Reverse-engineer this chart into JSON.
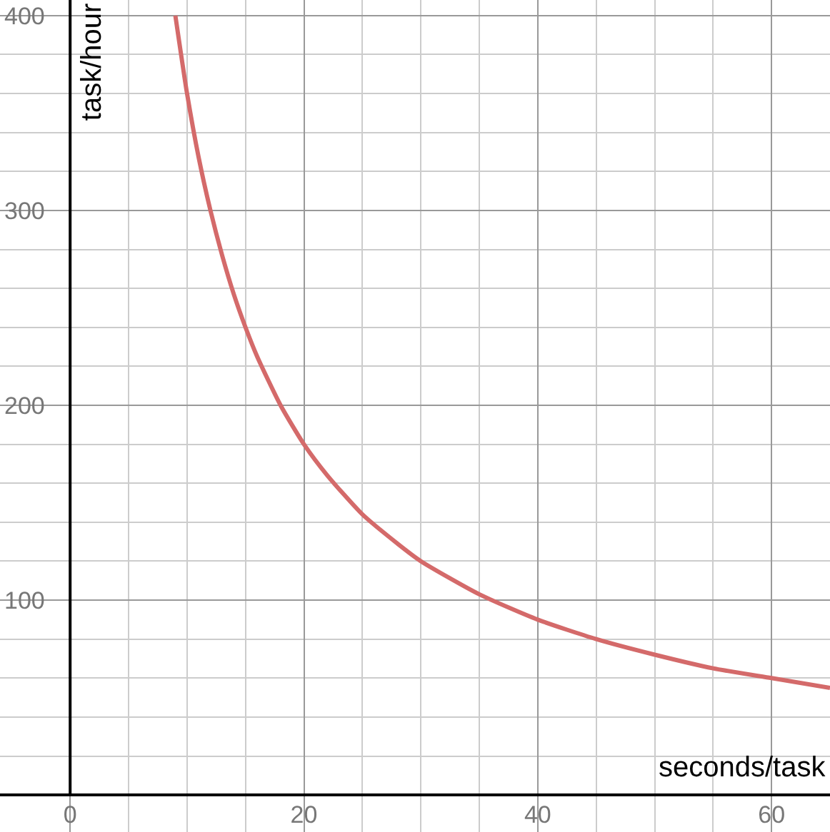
{
  "chart_data": {
    "type": "line",
    "xlabel": "seconds/task",
    "ylabel": "task/hour",
    "x": [
      9,
      10,
      11,
      12,
      13,
      14,
      15,
      16,
      18,
      20,
      22,
      25,
      28,
      30,
      35,
      40,
      45,
      50,
      55,
      60,
      65
    ],
    "series": [
      {
        "color": "#d46a6a",
        "values": [
          400,
          360,
          327,
          300,
          277,
          257,
          240,
          225,
          200,
          180,
          164,
          144,
          129,
          120,
          103,
          90,
          80,
          72,
          65,
          60,
          55
        ]
      }
    ],
    "xlim": [
      -6,
      65
    ],
    "ylim": [
      -19,
      408
    ],
    "xticks": [
      0,
      20,
      40,
      60
    ],
    "yticks": [
      100,
      200,
      300,
      400
    ],
    "grid": true,
    "legend": false,
    "marker": "none",
    "line_style": "solid"
  }
}
